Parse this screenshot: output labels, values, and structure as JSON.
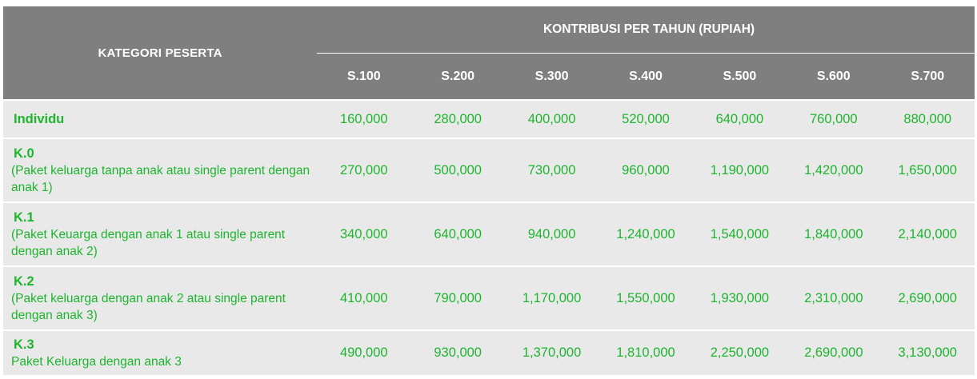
{
  "header": {
    "category_label": "KATEGORI  PESERTA",
    "group_label": "KONTRIBUSI PER TAHUN (RUPIAH)",
    "tiers": [
      "S.100",
      "S.200",
      "S.300",
      "S.400",
      "S.500",
      "S.600",
      "S.700"
    ]
  },
  "rows": [
    {
      "code": "Individu",
      "description": "",
      "values": [
        "160,000",
        "280,000",
        "400,000",
        "520,000",
        "640,000",
        "760,000",
        "880,000"
      ]
    },
    {
      "code": "K.0",
      "description": "(Paket keluarga tanpa anak atau single parent dengan anak 1)",
      "values": [
        "270,000",
        "500,000",
        "730,000",
        "960,000",
        "1,190,000",
        "1,420,000",
        "1,650,000"
      ]
    },
    {
      "code": "K.1",
      "description": "(Paket Keuarga dengan anak 1 atau single parent dengan anak 2)",
      "values": [
        "340,000",
        "640,000",
        "940,000",
        "1,240,000",
        "1,540,000",
        "1,840,000",
        "2,140,000"
      ]
    },
    {
      "code": "K.2",
      "description": "(Paket keluarga dengan anak 2 atau single parent dengan anak 3)",
      "values": [
        "410,000",
        "790,000",
        "1,170,000",
        "1,550,000",
        "1,930,000",
        "2,310,000",
        "2,690,000"
      ]
    },
    {
      "code": "K.3",
      "description": "Paket Keluarga dengan anak 3",
      "values": [
        "490,000",
        "930,000",
        "1,370,000",
        "1,810,000",
        "2,250,000",
        "2,690,000",
        "3,130,000"
      ]
    }
  ],
  "colors": {
    "header_bg": "#7f7f7f",
    "header_text": "#ffffff",
    "row_bg": "#e9e9e9",
    "row_text": "#1db52e"
  }
}
